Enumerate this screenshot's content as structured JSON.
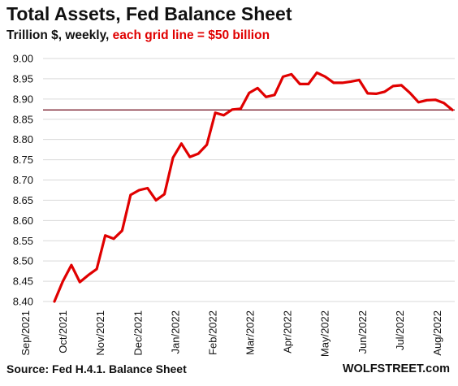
{
  "header": {
    "title": "Total Assets, Fed Balance Sheet",
    "subtitle_prefix": "Trillion $, weekly, ",
    "subtitle_highlight": "each grid line = $50 billion"
  },
  "footer": {
    "source": "Source: Fed H.4.1. Balance Sheet",
    "brand": "WOLFSTREET.com"
  },
  "colors": {
    "series": "#e00000",
    "subtitle_highlight": "#e00000",
    "reference_line": "#7a1f2e",
    "grid": "#d9d9d9"
  },
  "chart_data": {
    "type": "line",
    "title": "Total Assets, Fed Balance Sheet",
    "subtitle": "Trillion $, weekly, each grid line = $50 billion",
    "xlabel": "",
    "ylabel": "",
    "ylim": [
      8.4,
      9.0
    ],
    "yticks": [
      "9.00",
      "8.95",
      "8.90",
      "8.85",
      "8.80",
      "8.75",
      "8.70",
      "8.65",
      "8.60",
      "8.55",
      "8.50",
      "8.45",
      "8.40"
    ],
    "x_tick_labels": [
      "Sep/2021",
      "Oct/2021",
      "Nov/2021",
      "Dec/2021",
      "Jan/2022",
      "Feb/2022",
      "Mar/2022",
      "Apr/2022",
      "May/2022",
      "Jun/2022",
      "Jul/2022",
      "Aug/2022"
    ],
    "grid": true,
    "reference_line_value": 8.873,
    "series": [
      {
        "values": [
          8.4,
          8.45,
          8.49,
          8.448,
          8.465,
          8.48,
          8.563,
          8.555,
          8.575,
          8.663,
          8.675,
          8.68,
          8.65,
          8.665,
          8.755,
          8.79,
          8.757,
          8.765,
          8.787,
          8.866,
          8.86,
          8.874,
          8.876,
          8.915,
          8.927,
          8.905,
          8.91,
          8.955,
          8.961,
          8.937,
          8.937,
          8.965,
          8.955,
          8.94,
          8.94,
          8.943,
          8.947,
          8.914,
          8.913,
          8.918,
          8.932,
          8.934,
          8.915,
          8.892,
          8.897,
          8.898,
          8.89,
          8.873
        ]
      }
    ]
  }
}
